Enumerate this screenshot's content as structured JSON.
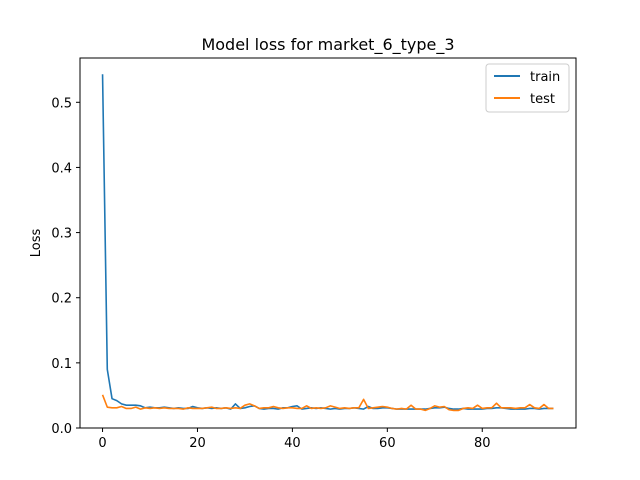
{
  "chart_data": {
    "type": "line",
    "title": "Model loss for market_6_type_3",
    "xlabel": "",
    "ylabel": "Loss",
    "xlim": [
      -4.75,
      99.75
    ],
    "ylim": [
      0.0,
      0.568
    ],
    "xticks": [
      0,
      20,
      40,
      60,
      80
    ],
    "yticks": [
      0.0,
      0.1,
      0.2,
      0.3,
      0.4,
      0.5
    ],
    "grid": false,
    "legend_position": "top-right",
    "series": [
      {
        "name": "train",
        "color": "#1f77b4",
        "values": [
          0.543,
          0.09,
          0.045,
          0.042,
          0.037,
          0.035,
          0.035,
          0.035,
          0.034,
          0.031,
          0.032,
          0.031,
          0.031,
          0.032,
          0.031,
          0.03,
          0.031,
          0.03,
          0.03,
          0.033,
          0.031,
          0.03,
          0.031,
          0.03,
          0.031,
          0.03,
          0.031,
          0.029,
          0.037,
          0.03,
          0.031,
          0.033,
          0.034,
          0.03,
          0.029,
          0.03,
          0.03,
          0.029,
          0.031,
          0.031,
          0.033,
          0.034,
          0.029,
          0.03,
          0.031,
          0.03,
          0.031,
          0.03,
          0.029,
          0.03,
          0.029,
          0.03,
          0.03,
          0.031,
          0.03,
          0.029,
          0.033,
          0.03,
          0.03,
          0.031,
          0.031,
          0.03,
          0.029,
          0.029,
          0.029,
          0.029,
          0.029,
          0.029,
          0.029,
          0.03,
          0.031,
          0.031,
          0.032,
          0.03,
          0.029,
          0.029,
          0.03,
          0.029,
          0.029,
          0.029,
          0.029,
          0.03,
          0.03,
          0.031,
          0.031,
          0.03,
          0.029,
          0.029,
          0.029,
          0.029,
          0.03,
          0.03,
          0.029,
          0.03,
          0.03,
          0.03
        ]
      },
      {
        "name": "test",
        "color": "#ff7f0e",
        "values": [
          0.051,
          0.032,
          0.031,
          0.031,
          0.033,
          0.03,
          0.03,
          0.032,
          0.029,
          0.031,
          0.03,
          0.031,
          0.03,
          0.031,
          0.03,
          0.03,
          0.03,
          0.029,
          0.031,
          0.03,
          0.03,
          0.03,
          0.031,
          0.032,
          0.03,
          0.03,
          0.031,
          0.03,
          0.031,
          0.03,
          0.035,
          0.037,
          0.034,
          0.03,
          0.031,
          0.031,
          0.033,
          0.031,
          0.03,
          0.031,
          0.031,
          0.03,
          0.03,
          0.034,
          0.03,
          0.031,
          0.03,
          0.031,
          0.034,
          0.032,
          0.03,
          0.031,
          0.03,
          0.031,
          0.031,
          0.044,
          0.03,
          0.031,
          0.032,
          0.033,
          0.032,
          0.03,
          0.029,
          0.03,
          0.029,
          0.035,
          0.029,
          0.029,
          0.027,
          0.03,
          0.034,
          0.032,
          0.033,
          0.028,
          0.027,
          0.027,
          0.03,
          0.031,
          0.03,
          0.035,
          0.03,
          0.031,
          0.031,
          0.038,
          0.031,
          0.031,
          0.031,
          0.03,
          0.031,
          0.031,
          0.036,
          0.031,
          0.03,
          0.036,
          0.03,
          0.03
        ]
      }
    ]
  }
}
